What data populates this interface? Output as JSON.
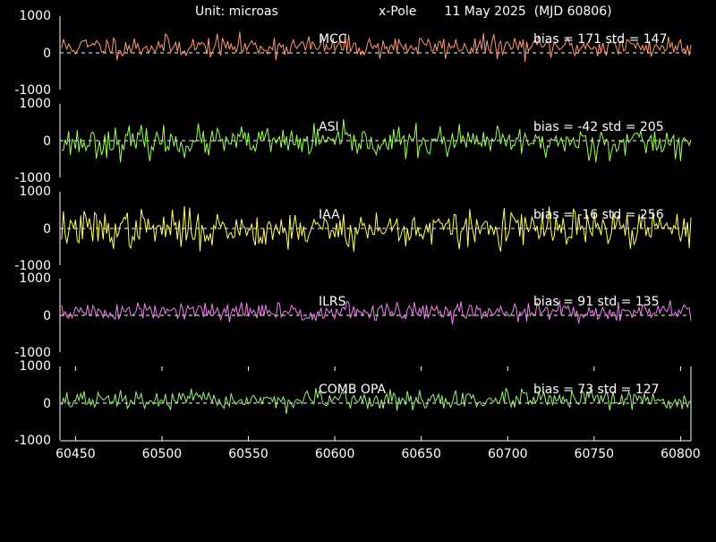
{
  "header": {
    "unit": "Unit: microas",
    "title": "x-Pole       11 May 2025  (MJD 60806)"
  },
  "chart_data": {
    "type": "line",
    "xlim": [
      60441,
      60806
    ],
    "x_ticks": [
      60450,
      60500,
      60550,
      60600,
      60650,
      60700,
      60750,
      60800
    ],
    "x_tick_labels": [
      "60450",
      "60500",
      "60550",
      "60600",
      "60650",
      "60700",
      "60750",
      "60800"
    ],
    "ylim": [
      -1000,
      1000
    ],
    "y_tick_labels": [
      "1000",
      "0",
      "-1000"
    ],
    "zero_line": "dashed",
    "panels": [
      {
        "name": "MCC",
        "stats": "bias = 171  std = 147",
        "color": "#ff9a72",
        "bias": 171,
        "std": 147,
        "seed": 11
      },
      {
        "name": "ASI",
        "stats": "bias = -42  std = 205",
        "color": "#9cff5a",
        "bias": -42,
        "std": 205,
        "seed": 23
      },
      {
        "name": "IAA",
        "stats": "bias = -16  std = 256",
        "color": "#ffff66",
        "bias": -16,
        "std": 256,
        "seed": 37
      },
      {
        "name": "ILRS",
        "stats": "bias = 91  std = 135",
        "color": "#ee82ee",
        "bias": 91,
        "std": 135,
        "seed": 51
      },
      {
        "name": "COMB OPA",
        "stats": "bias = 73  std = 127",
        "color": "#9ef07a",
        "bias": 73,
        "std": 127,
        "seed": 67
      }
    ]
  }
}
